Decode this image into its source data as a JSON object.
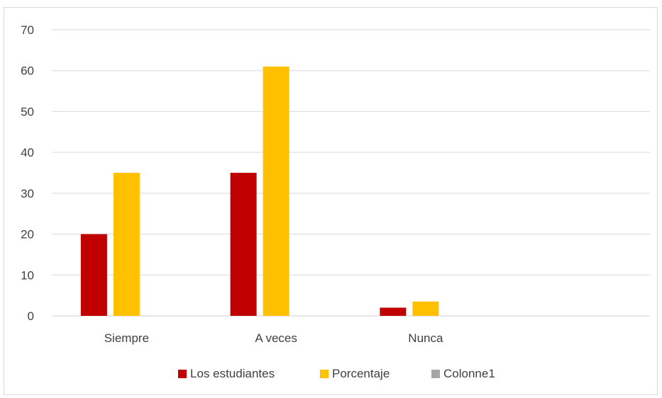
{
  "chart_data": {
    "type": "bar",
    "categories": [
      "Siempre",
      "A veces",
      "Nunca",
      ""
    ],
    "series": [
      {
        "name": "Los estudiantes",
        "values": [
          20,
          35,
          2,
          null
        ],
        "color": "#c00000"
      },
      {
        "name": "Porcentaje",
        "values": [
          35,
          61,
          3.5,
          null
        ],
        "color": "#ffc000"
      },
      {
        "name": "Colonne1",
        "values": [
          null,
          null,
          null,
          null
        ],
        "color": "#a5a5a5"
      }
    ],
    "ylim": [
      0,
      70
    ],
    "yticks": [
      0,
      10,
      20,
      30,
      40,
      50,
      60,
      70
    ],
    "grid": true,
    "legend": "bottom",
    "title": "",
    "xlabel": "",
    "ylabel": ""
  }
}
